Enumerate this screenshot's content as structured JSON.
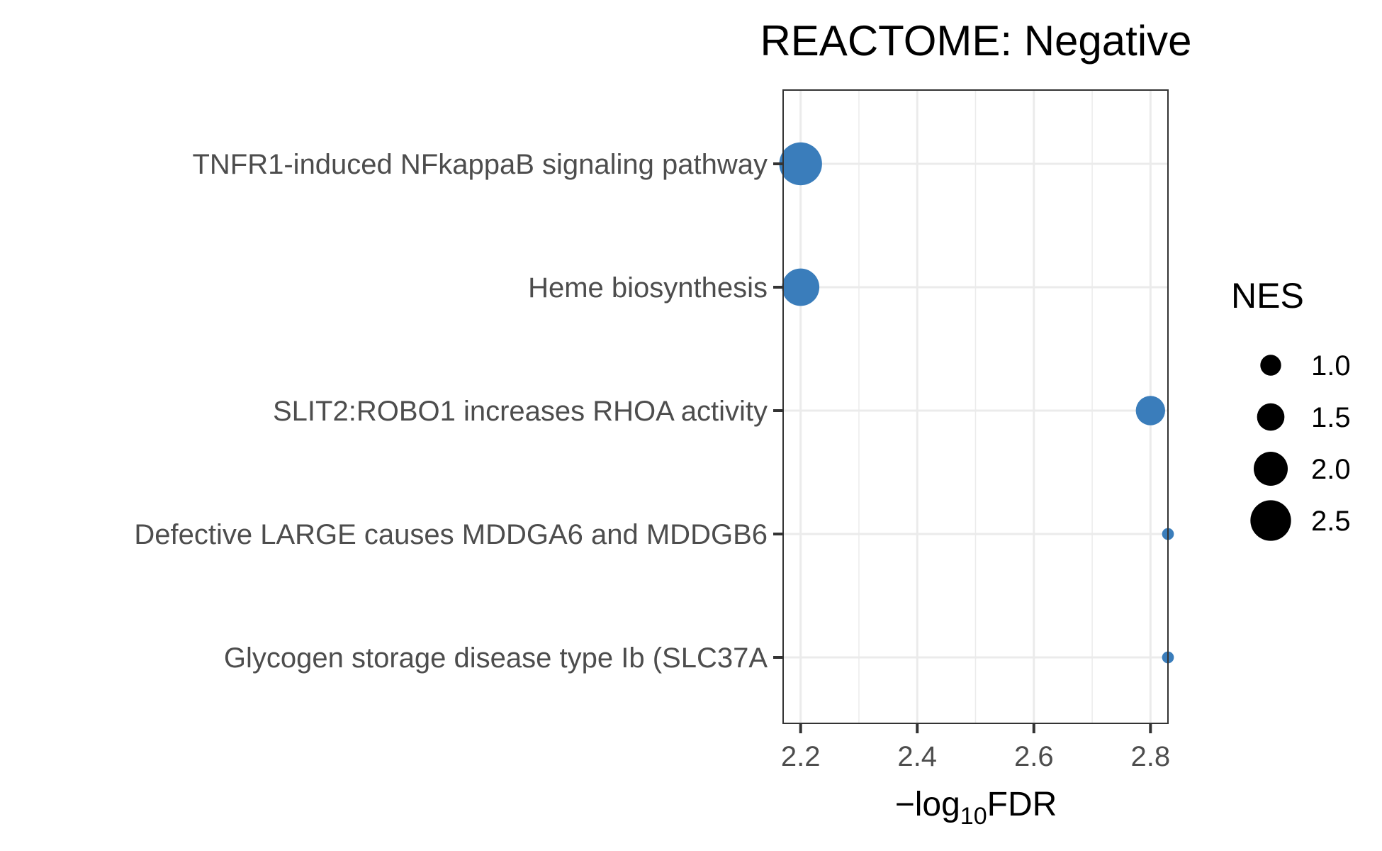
{
  "chart_data": {
    "type": "scatter",
    "title": "REACTOME: Negative",
    "xlabel_prefix": "−log",
    "xlabel_sub": "10",
    "xlabel_suffix": "FDR",
    "ylabel": "",
    "xlim": [
      2.17,
      2.83
    ],
    "xticks": [
      2.2,
      2.4,
      2.6,
      2.8
    ],
    "xtick_labels": [
      "2.2",
      "2.4",
      "2.6",
      "2.8"
    ],
    "categories": [
      "TNFR1-induced NFkappaB signaling pathway",
      "Heme biosynthesis",
      "SLIT2:ROBO1 increases RHOA activity",
      "Defective LARGE causes MDDGA6 and MDDGB6",
      "Glycogen storage disease type Ib (SLC37A"
    ],
    "points": [
      {
        "category": "TNFR1-induced NFkappaB signaling pathway",
        "x": 2.2,
        "size": 2.6
      },
      {
        "category": "Heme biosynthesis",
        "x": 2.2,
        "size": 2.2
      },
      {
        "category": "SLIT2:ROBO1 increases RHOA activity",
        "x": 2.8,
        "size": 1.6
      },
      {
        "category": "Defective LARGE causes MDDGA6 and MDDGB6",
        "x": 2.83,
        "size": 0.3
      },
      {
        "category": "Glycogen storage disease type Ib (SLC37A",
        "x": 2.83,
        "size": 0.3
      }
    ],
    "size_legend": {
      "title": "NES",
      "values": [
        1.0,
        1.5,
        2.0,
        2.5
      ],
      "labels": [
        "1.0",
        "1.5",
        "2.0",
        "2.5"
      ]
    },
    "point_color": "#3a7dbb",
    "legend_color": "#000000",
    "grid": true,
    "legend_position": "right"
  }
}
